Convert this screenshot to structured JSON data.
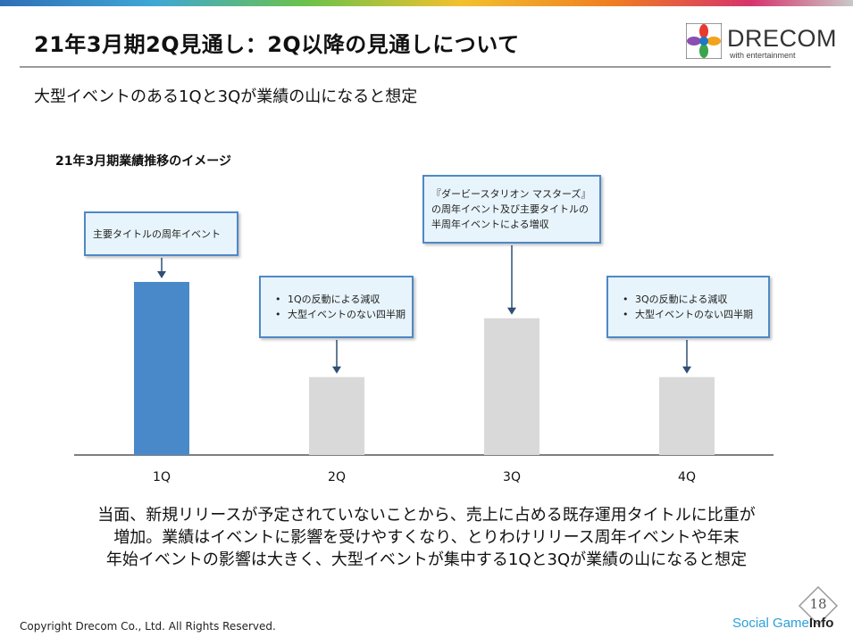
{
  "title": "21年3月期2Q見通し：2Q以降の見通しについて",
  "subtitle": "大型イベントのある1Qと3Qが業績の山になると想定",
  "logo": {
    "word": "DRECOM",
    "tagline": "with entertainment"
  },
  "chart_data": {
    "type": "bar",
    "title": "21年3月期業績推移のイメージ",
    "categories": [
      "1Q",
      "2Q",
      "3Q",
      "4Q"
    ],
    "values": [
      100,
      45,
      79,
      45
    ],
    "y_axis_visible": false,
    "highlight_category": "1Q",
    "colors": {
      "highlight": "#4a89c9",
      "default": "#d9d9d9"
    },
    "annotations": [
      {
        "category": "1Q",
        "lines": [
          "主要タイトルの周年イベント"
        ],
        "bulleted": false
      },
      {
        "category": "2Q",
        "lines": [
          "1Qの反動による減収",
          "大型イベントのない四半期"
        ],
        "bulleted": true
      },
      {
        "category": "3Q",
        "lines": [
          "『ダービースタリオン マスターズ』",
          "の周年イベント及び主要タイトルの",
          "半周年イベントによる増収"
        ],
        "bulleted": false
      },
      {
        "category": "4Q",
        "lines": [
          "3Qの反動による減収",
          "大型イベントのない四半期"
        ],
        "bulleted": true
      }
    ]
  },
  "summary": {
    "lines": [
      "当面、新規リリースが予定されていないことから、売上に占める既存運用タイトルに比重が",
      "増加。業績はイベントに影響を受けやすくなり、とりわけリリース周年イベントや年末",
      "年始イベントの影響は大きく、大型イベントが集中する1Qと3Qが業績の山になると想定"
    ]
  },
  "footer": {
    "copyright": "Copyright Drecom Co., Ltd. All Rights Reserved.",
    "page_number": "18",
    "watermark_a": "Social Game",
    "watermark_b": "Info"
  },
  "colors": {
    "accent_blue": "#4a89c9",
    "callout_border": "#4f88c6",
    "callout_fill": "#e7f4fb",
    "bar_gray": "#d9d9d9"
  }
}
